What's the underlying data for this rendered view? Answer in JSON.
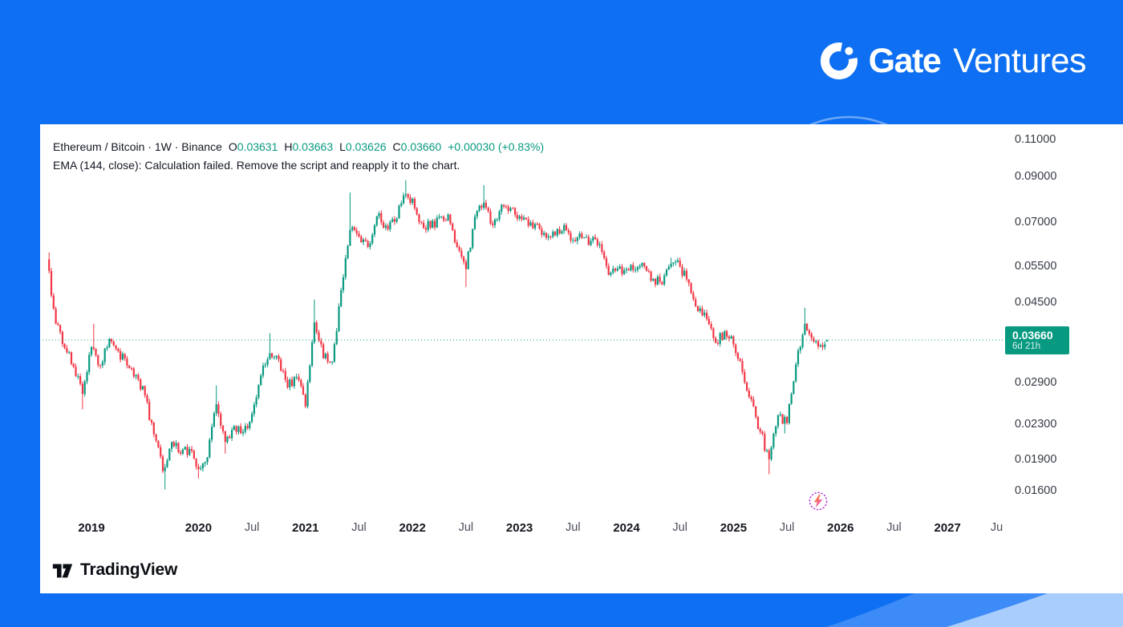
{
  "branding": {
    "logo_text_bold": "Gate",
    "logo_text_light": "Ventures"
  },
  "chart": {
    "legend": {
      "title": "Ethereum / Bitcoin · 1W · Binance",
      "ohlc": [
        {
          "label": "O",
          "value": "0.03631"
        },
        {
          "label": "H",
          "value": "0.03663"
        },
        {
          "label": "L",
          "value": "0.03626"
        },
        {
          "label": "C",
          "value": "0.03660"
        }
      ],
      "change": "+0.00030 (+0.83%)",
      "indicator_message": "EMA (144, close): Calculation failed. Remove the script and reapply it to the chart."
    },
    "price_label": {
      "price": "0.03660",
      "countdown": "6d 21h"
    },
    "watermark": "TradingView"
  },
  "chart_data": {
    "type": "candlestick",
    "symbol": "Ethereum / Bitcoin",
    "timeframe": "1W",
    "exchange": "Binance",
    "scale": "log",
    "current_price": 0.0366,
    "last_candle": {
      "o": 0.03631,
      "h": 0.03663,
      "l": 0.03626,
      "c": 0.0366
    },
    "change_abs": 0.0003,
    "change_pct": 0.83,
    "colors": {
      "up": "#089981",
      "down": "#f23645",
      "dotted_line": "#089981",
      "badge": "#089981"
    },
    "y_axis": {
      "labels": [
        {
          "text": "0.11000",
          "value": 0.11
        },
        {
          "text": "0.09000",
          "value": 0.09
        },
        {
          "text": "0.07000",
          "value": 0.07
        },
        {
          "text": "0.05500",
          "value": 0.055
        },
        {
          "text": "0.04500",
          "value": 0.045
        },
        {
          "text": "0.02900",
          "value": 0.029
        },
        {
          "text": "0.02300",
          "value": 0.023
        },
        {
          "text": "0.01900",
          "value": 0.019
        },
        {
          "text": "0.01600",
          "value": 0.016
        }
      ]
    },
    "x_axis": {
      "labels": [
        {
          "text": "2019",
          "t": 2019,
          "major": true
        },
        {
          "text": "2020",
          "t": 2020,
          "major": true
        },
        {
          "text": "Jul",
          "t": 2020.5,
          "major": false
        },
        {
          "text": "2021",
          "t": 2021,
          "major": true
        },
        {
          "text": "Jul",
          "t": 2021.5,
          "major": false
        },
        {
          "text": "2022",
          "t": 2022,
          "major": true
        },
        {
          "text": "Jul",
          "t": 2022.5,
          "major": false
        },
        {
          "text": "2023",
          "t": 2023,
          "major": true
        },
        {
          "text": "Jul",
          "t": 2023.5,
          "major": false
        },
        {
          "text": "2024",
          "t": 2024,
          "major": true
        },
        {
          "text": "Jul",
          "t": 2024.5,
          "major": false
        },
        {
          "text": "2025",
          "t": 2025,
          "major": true
        },
        {
          "text": "Jul",
          "t": 2025.5,
          "major": false
        },
        {
          "text": "2026",
          "t": 2026,
          "major": true
        },
        {
          "text": "Jul",
          "t": 2026.5,
          "major": false
        },
        {
          "text": "2027",
          "t": 2027,
          "major": true
        },
        {
          "text": "Ju",
          "t": 2027.46,
          "major": false
        }
      ]
    },
    "anchors": [
      [
        2018.583,
        0.057,
        null,
        null
      ],
      [
        2018.667,
        0.04,
        0.0592,
        null
      ],
      [
        2018.75,
        0.035,
        null,
        null
      ],
      [
        2018.833,
        0.0316,
        null,
        null
      ],
      [
        2018.917,
        0.0272,
        null,
        0.025
      ],
      [
        2019.0,
        0.0352,
        null,
        null
      ],
      [
        2019.083,
        0.0318,
        0.04,
        null
      ],
      [
        2019.167,
        0.0368,
        null,
        null
      ],
      [
        2019.25,
        0.0344,
        null,
        null
      ],
      [
        2019.333,
        0.0318,
        null,
        null
      ],
      [
        2019.417,
        0.0302,
        null,
        null
      ],
      [
        2019.5,
        0.027,
        null,
        null
      ],
      [
        2019.583,
        0.0218,
        null,
        null
      ],
      [
        2019.667,
        0.0178,
        null,
        null
      ],
      [
        2019.75,
        0.0209,
        null,
        0.0161
      ],
      [
        2019.833,
        0.0196,
        null,
        null
      ],
      [
        2019.917,
        0.0201,
        null,
        null
      ],
      [
        2020.0,
        0.018,
        null,
        0.0171
      ],
      [
        2020.083,
        0.0192,
        null,
        null
      ],
      [
        2020.167,
        0.0257,
        0.0285,
        null
      ],
      [
        2020.25,
        0.0209,
        null,
        0.0196
      ],
      [
        2020.333,
        0.0228,
        null,
        null
      ],
      [
        2020.417,
        0.0221,
        null,
        null
      ],
      [
        2020.5,
        0.0244,
        null,
        null
      ],
      [
        2020.583,
        0.0301,
        null,
        null
      ],
      [
        2020.667,
        0.034,
        0.038,
        null
      ],
      [
        2020.75,
        0.0329,
        null,
        null
      ],
      [
        2020.833,
        0.0282,
        null,
        null
      ],
      [
        2020.917,
        0.0299,
        null,
        null
      ],
      [
        2021.0,
        0.0254,
        null,
        null
      ],
      [
        2021.083,
        0.0403,
        0.0457,
        null
      ],
      [
        2021.167,
        0.0331,
        null,
        null
      ],
      [
        2021.25,
        0.0325,
        null,
        null
      ],
      [
        2021.333,
        0.0481,
        null,
        null
      ],
      [
        2021.417,
        0.067,
        0.0823,
        null
      ],
      [
        2021.5,
        0.0646,
        null,
        null
      ],
      [
        2021.583,
        0.061,
        null,
        null
      ],
      [
        2021.667,
        0.0722,
        null,
        null
      ],
      [
        2021.75,
        0.0686,
        null,
        null
      ],
      [
        2021.833,
        0.0701,
        null,
        null
      ],
      [
        2021.917,
        0.081,
        null,
        null
      ],
      [
        2022.0,
        0.0795,
        0.088,
        null
      ],
      [
        2022.083,
        0.0697,
        null,
        null
      ],
      [
        2022.167,
        0.0678,
        null,
        null
      ],
      [
        2022.25,
        0.072,
        null,
        null
      ],
      [
        2022.333,
        0.0729,
        null,
        null
      ],
      [
        2022.417,
        0.061,
        null,
        null
      ],
      [
        2022.5,
        0.054,
        null,
        0.049
      ],
      [
        2022.583,
        0.0721,
        null,
        null
      ],
      [
        2022.667,
        0.0778,
        0.0857,
        null
      ],
      [
        2022.75,
        0.0688,
        null,
        null
      ],
      [
        2022.833,
        0.0769,
        null,
        null
      ],
      [
        2022.917,
        0.0755,
        null,
        null
      ],
      [
        2023.0,
        0.0722,
        null,
        null
      ],
      [
        2023.083,
        0.0686,
        null,
        null
      ],
      [
        2023.167,
        0.0692,
        null,
        null
      ],
      [
        2023.25,
        0.0642,
        null,
        null
      ],
      [
        2023.333,
        0.065,
        null,
        null
      ],
      [
        2023.417,
        0.0688,
        null,
        null
      ],
      [
        2023.5,
        0.0634,
        null,
        null
      ],
      [
        2023.583,
        0.0641,
        null,
        null
      ],
      [
        2023.667,
        0.0631,
        null,
        null
      ],
      [
        2023.75,
        0.0619,
        null,
        null
      ],
      [
        2023.833,
        0.0523,
        null,
        null
      ],
      [
        2023.917,
        0.0542,
        null,
        null
      ],
      [
        2024.0,
        0.054,
        null,
        null
      ],
      [
        2024.083,
        0.0538,
        null,
        null
      ],
      [
        2024.167,
        0.0549,
        null,
        null
      ],
      [
        2024.25,
        0.0512,
        null,
        null
      ],
      [
        2024.333,
        0.0497,
        null,
        null
      ],
      [
        2024.417,
        0.0557,
        0.0575,
        null
      ],
      [
        2024.5,
        0.0548,
        null,
        null
      ],
      [
        2024.583,
        0.05,
        null,
        null
      ],
      [
        2024.667,
        0.0429,
        null,
        null
      ],
      [
        2024.75,
        0.0411,
        null,
        null
      ],
      [
        2024.833,
        0.036,
        null,
        null
      ],
      [
        2024.917,
        0.0384,
        null,
        null
      ],
      [
        2025.0,
        0.0357,
        null,
        null
      ],
      [
        2025.083,
        0.0307,
        null,
        null
      ],
      [
        2025.167,
        0.0264,
        null,
        null
      ],
      [
        2025.25,
        0.0221,
        null,
        null
      ],
      [
        2025.333,
        0.019,
        null,
        0.0175
      ],
      [
        2025.417,
        0.0242,
        null,
        null
      ],
      [
        2025.5,
        0.0232,
        null,
        0.0219
      ],
      [
        2025.583,
        0.032,
        null,
        null
      ],
      [
        2025.667,
        0.04,
        0.0437,
        null
      ],
      [
        2025.75,
        0.0363,
        null,
        null
      ],
      [
        2025.833,
        0.0352,
        null,
        null
      ],
      [
        2025.875,
        0.0366,
        null,
        null
      ]
    ]
  }
}
